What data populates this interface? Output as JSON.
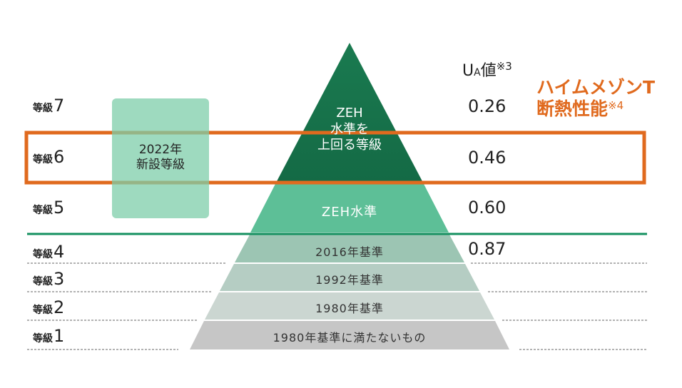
{
  "levels": [
    {
      "label": "等級",
      "num": "7",
      "ua": "0.26"
    },
    {
      "label": "等級",
      "num": "6",
      "ua": "0.46"
    },
    {
      "label": "等級",
      "num": "5",
      "ua": "0.60"
    },
    {
      "label": "等級",
      "num": "4",
      "ua": "0.87"
    },
    {
      "label": "等級",
      "num": "3"
    },
    {
      "label": "等級",
      "num": "2"
    },
    {
      "label": "等級",
      "num": "1"
    }
  ],
  "ua_header": {
    "u": "U",
    "sub": "A",
    "text": "値",
    "note": "※3"
  },
  "highlight": {
    "line1": "ハイムメゾンT",
    "line2": "断熱性能",
    "note": "※4",
    "color": "#e06a1e"
  },
  "new_grade_box": {
    "line1": "2022年",
    "line2": "新設等級"
  },
  "pyramid": {
    "top": {
      "line1": "ZEH",
      "line2": "水準を",
      "line3": "上回る等級",
      "color": "#1e7a52"
    },
    "zeh": {
      "label": "ZEH水準",
      "color": "#5dbf97"
    },
    "b2016": {
      "label": "2016年基準",
      "color": "#9cc5b3"
    },
    "b1992": {
      "label": "1992年基準",
      "color": "#b5cdc3"
    },
    "b1980": {
      "label": "1980年基準",
      "color": "#cbd6d1"
    },
    "below": {
      "label": "1980年基準に満たないもの",
      "color": "#c6c6c6"
    }
  }
}
